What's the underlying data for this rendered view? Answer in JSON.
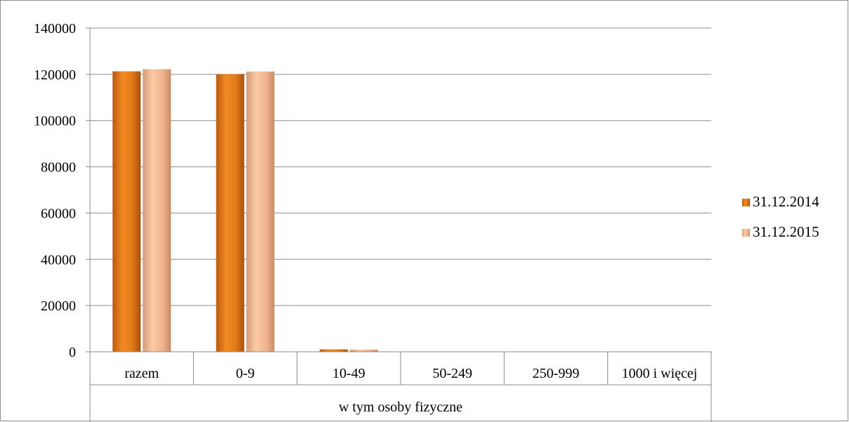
{
  "chart_data": {
    "type": "bar",
    "categories": [
      "razem",
      "0-9",
      "10-49",
      "50-249",
      "250-999",
      "1000 i więcej"
    ],
    "group_label": "w tym osoby fizyczne",
    "series": [
      {
        "name": "31.12.2014",
        "values": [
          121300,
          120100,
          1050,
          80,
          15,
          2
        ],
        "color": "#e8821e"
      },
      {
        "name": "31.12.2015",
        "values": [
          122200,
          121200,
          950,
          80,
          15,
          2
        ],
        "color": "#f5b98a"
      }
    ],
    "ylim": [
      0,
      140000
    ],
    "yticks": [
      0,
      20000,
      40000,
      60000,
      80000,
      100000,
      120000,
      140000
    ],
    "grid": true,
    "legend_position": "right"
  }
}
